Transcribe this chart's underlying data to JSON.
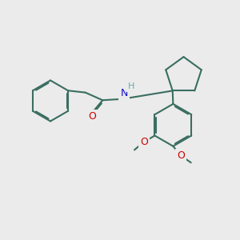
{
  "bg": "#ebebeb",
  "bc": "#3a6e60",
  "bw": 1.5,
  "dbo": 0.05,
  "OC": "#cc0000",
  "NC": "#1111cc",
  "HC": "#66aaaa",
  "fs": 8.5,
  "figsize": [
    3.0,
    3.0
  ],
  "dpi": 100,
  "xlim": [
    0,
    10
  ],
  "ylim": [
    0,
    10
  ]
}
